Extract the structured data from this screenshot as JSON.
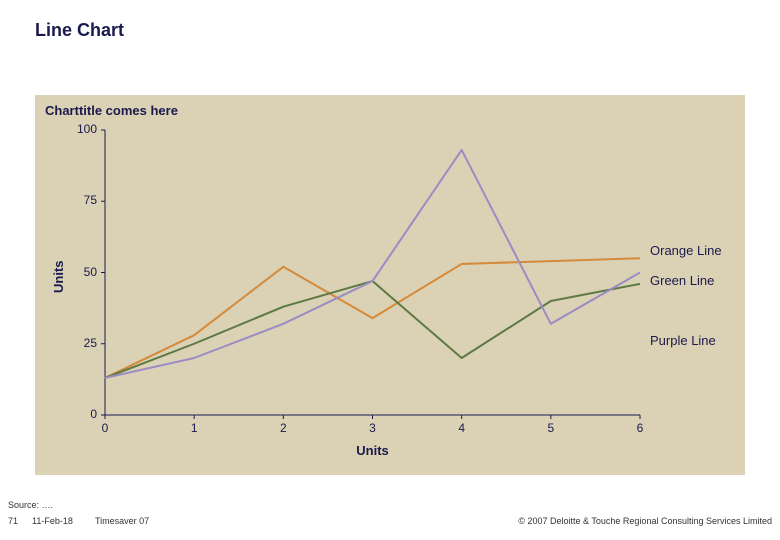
{
  "slide": {
    "title": "Line Chart"
  },
  "chart": {
    "type": "line",
    "title": "Charttitle comes here",
    "background_color": "#dbd1b5",
    "grid_color": "#7a6f5a",
    "axis_color": "#1a1a4d",
    "text_color": "#1a1a4d",
    "title_fontsize": 13,
    "label_fontsize": 13,
    "tick_fontsize": 12,
    "x_label": "Units",
    "y_label": "Units",
    "xlim": [
      0,
      6
    ],
    "ylim": [
      0,
      100
    ],
    "x_ticks": [
      0,
      1,
      2,
      3,
      4,
      5,
      6
    ],
    "y_ticks": [
      0,
      25,
      50,
      75,
      100
    ],
    "line_width": 2,
    "series": [
      {
        "name": "Orange Line",
        "color": "#d58a3a",
        "x": [
          0,
          1,
          2,
          3,
          4,
          5,
          6
        ],
        "y": [
          13,
          28,
          52,
          34,
          53,
          54,
          55
        ]
      },
      {
        "name": "Green Line",
        "color": "#5c7a42",
        "x": [
          0,
          1,
          2,
          3,
          4,
          5,
          6
        ],
        "y": [
          13,
          25,
          38,
          47,
          20,
          40,
          46
        ]
      },
      {
        "name": "Purple Line",
        "color": "#9a8cc4",
        "x": [
          0,
          1,
          2,
          3,
          4,
          5,
          6
        ],
        "y": [
          13,
          20,
          32,
          47,
          93,
          32,
          50
        ]
      }
    ],
    "legend": {
      "items": [
        "Orange Line",
        "Green Line",
        "Purple Line"
      ]
    }
  },
  "footer": {
    "source": "Source: ….",
    "page_number": "71",
    "date": "11-Feb-18",
    "project": "Timesaver 07",
    "copyright": "© 2007 Deloitte & Touche Regional Consulting Services Limited"
  }
}
